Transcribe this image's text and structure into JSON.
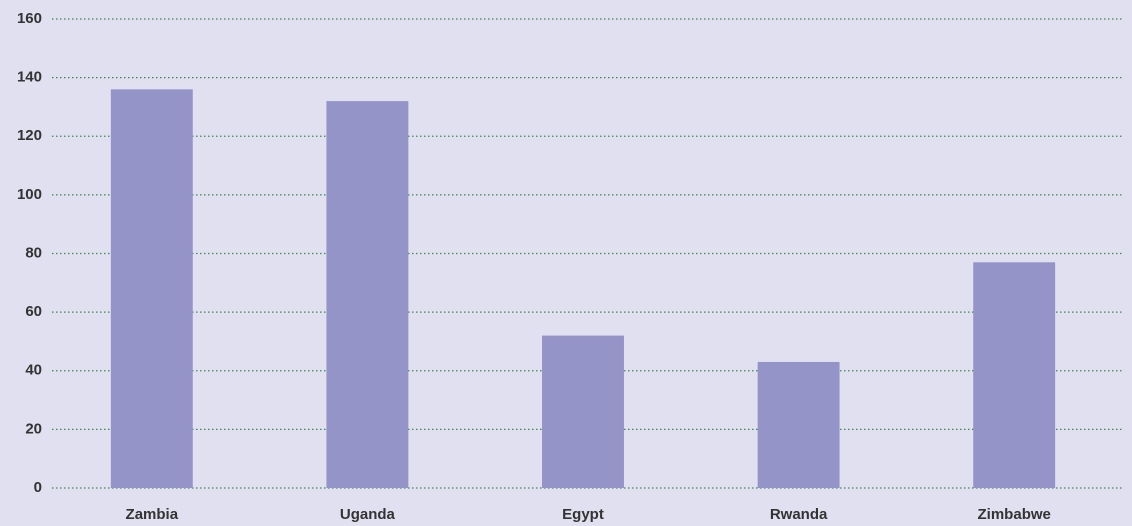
{
  "chart_data": {
    "type": "bar",
    "categories": [
      "Zambia",
      "Uganda",
      "Egypt",
      "Rwanda",
      "Zimbabwe"
    ],
    "values": [
      136,
      132,
      52,
      43,
      77
    ],
    "color": "#9594c8",
    "ylim": [
      0,
      160
    ],
    "yticks": [
      0,
      20,
      40,
      60,
      80,
      100,
      120,
      140,
      160
    ],
    "grid": true
  }
}
